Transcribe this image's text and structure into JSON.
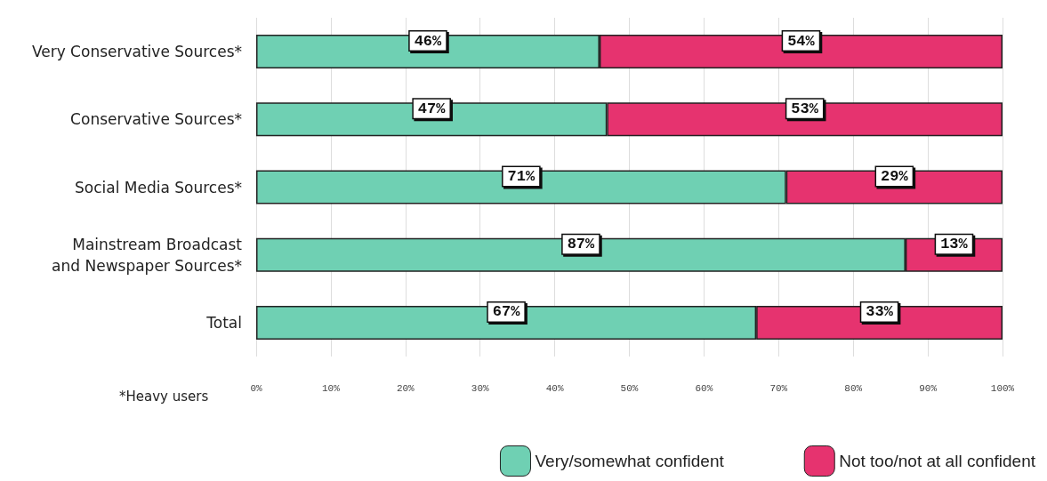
{
  "chart_data": {
    "type": "bar",
    "orientation": "horizontal",
    "stacked": true,
    "categories": [
      "Very Conservative Sources*",
      "Conservative Sources*",
      "Social Media Sources*",
      "Mainstream Broadcast\nand Newspaper Sources*",
      "Total"
    ],
    "series": [
      {
        "name": "Very/somewhat confident",
        "color": "#6fd0b3",
        "values": [
          46,
          47,
          71,
          87,
          67
        ],
        "value_labels": [
          "46%",
          "47%",
          "71%",
          "87%",
          "67%"
        ]
      },
      {
        "name": "Not too/not at all confident",
        "color": "#e6336f",
        "values": [
          54,
          53,
          29,
          13,
          33
        ],
        "value_labels": [
          "54%",
          "53%",
          "29%",
          "13%",
          "33%"
        ]
      }
    ],
    "xlim": [
      0,
      100
    ],
    "xticks": [
      {
        "value": 0,
        "label": "0%"
      },
      {
        "value": 10,
        "label": "10%"
      },
      {
        "value": 20,
        "label": "20%"
      },
      {
        "value": 30,
        "label": "30%"
      },
      {
        "value": 40,
        "label": "40%"
      },
      {
        "value": 50,
        "label": "50%"
      },
      {
        "value": 60,
        "label": "60%"
      },
      {
        "value": 70,
        "label": "70%"
      },
      {
        "value": 80,
        "label": "80%"
      },
      {
        "value": 90,
        "label": "90%"
      },
      {
        "value": 100,
        "label": "100%"
      }
    ],
    "grid": "x",
    "legend": "bottom right",
    "annotations": [
      "*Heavy users"
    ]
  }
}
